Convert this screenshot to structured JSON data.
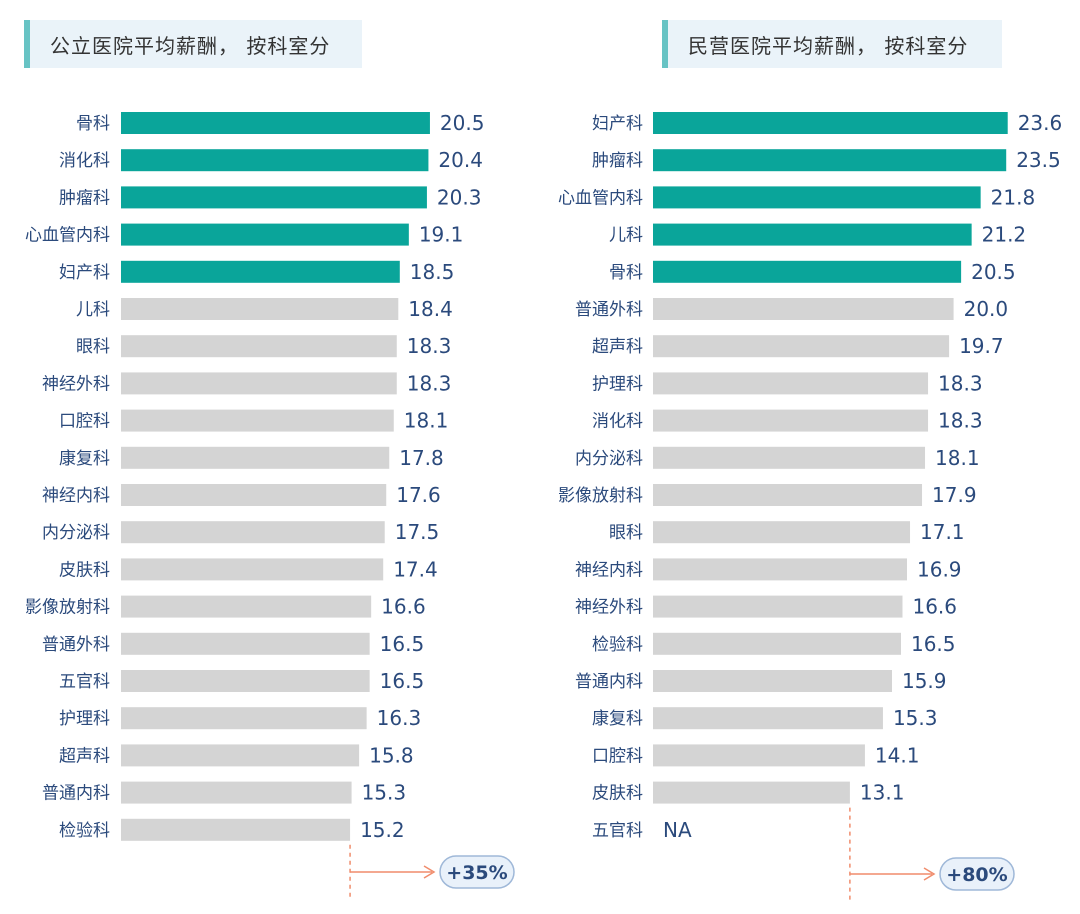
{
  "colors": {
    "highlight": "#0aa59a",
    "normal": "#d4d4d4",
    "text": "#2b4a7c",
    "arrow": "#f08c6c",
    "pill_fill": "#e9f1fa",
    "pill_stroke": "#9fb8d8",
    "title_bg": "#eaf3f9",
    "title_accent": "#67c3c4"
  },
  "chart_data": [
    {
      "type": "bar",
      "orientation": "horizontal",
      "title": "公立医院平均薪酬， 按科室分",
      "categories": [
        "骨科",
        "消化科",
        "肿瘤科",
        "心血管内科",
        "妇产科",
        "儿科",
        "眼科",
        "神经外科",
        "口腔科",
        "康复科",
        "神经内科",
        "内分泌科",
        "皮肤科",
        "影像放射科",
        "普通外科",
        "五官科",
        "护理科",
        "超声科",
        "普通内科",
        "检验科"
      ],
      "values": [
        20.5,
        20.4,
        20.3,
        19.1,
        18.5,
        18.4,
        18.3,
        18.3,
        18.1,
        17.8,
        17.6,
        17.5,
        17.4,
        16.6,
        16.5,
        16.5,
        16.3,
        15.8,
        15.3,
        15.2
      ],
      "labels": [
        "20.5",
        "20.4",
        "20.3",
        "19.1",
        "18.5",
        "18.4",
        "18.3",
        "18.3",
        "18.1",
        "17.8",
        "17.6",
        "17.5",
        "17.4",
        "16.6",
        "16.5",
        "16.5",
        "16.3",
        "15.8",
        "15.3",
        "15.2"
      ],
      "highlight_count": 5,
      "annotation": "+35%"
    },
    {
      "type": "bar",
      "orientation": "horizontal",
      "title": "民营医院平均薪酬， 按科室分",
      "categories": [
        "妇产科",
        "肿瘤科",
        "心血管内科",
        "儿科",
        "骨科",
        "普通外科",
        "超声科",
        "护理科",
        "消化科",
        "内分泌科",
        "影像放射科",
        "眼科",
        "神经内科",
        "神经外科",
        "检验科",
        "普通内科",
        "康复科",
        "口腔科",
        "皮肤科",
        "五官科"
      ],
      "values": [
        23.6,
        23.5,
        21.8,
        21.2,
        20.5,
        20.0,
        19.7,
        18.3,
        18.3,
        18.1,
        17.9,
        17.1,
        16.9,
        16.6,
        16.5,
        15.9,
        15.3,
        14.1,
        13.1,
        null
      ],
      "labels": [
        "23.6",
        "23.5",
        "21.8",
        "21.2",
        "20.5",
        "20.0",
        "19.7",
        "18.3",
        "18.3",
        "18.1",
        "17.9",
        "17.1",
        "16.9",
        "16.6",
        "16.5",
        "15.9",
        "15.3",
        "14.1",
        "13.1",
        "NA"
      ],
      "highlight_count": 5,
      "annotation": "+80%"
    }
  ]
}
